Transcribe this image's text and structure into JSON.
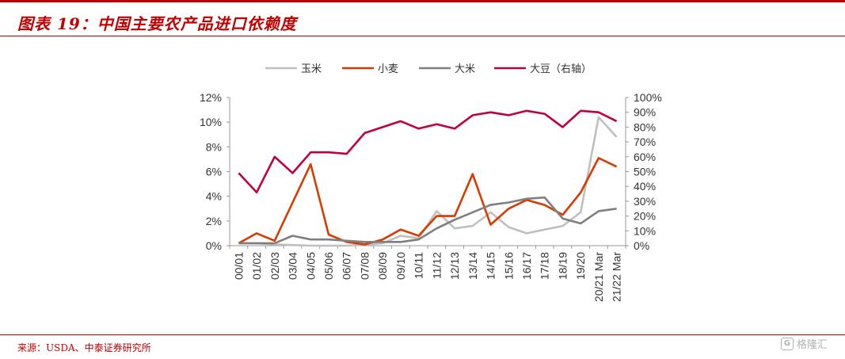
{
  "header": {
    "title": "图表 19：中国主要农产品进口依赖度"
  },
  "footer": {
    "source": "来源：USDA、中泰证券研究所"
  },
  "watermark": {
    "text": "格隆汇",
    "icon": "g-logo-icon"
  },
  "chart_data": {
    "type": "line",
    "categories": [
      "00/01",
      "01/02",
      "02/03",
      "03/04",
      "04/05",
      "05/06",
      "06/07",
      "07/08",
      "08/09",
      "09/10",
      "10/11",
      "11/12",
      "12/13",
      "13/14",
      "14/15",
      "15/16",
      "16/17",
      "17/18",
      "18/19",
      "19/20",
      "20/21 Mar",
      "21/22 Mar"
    ],
    "ylim_left": [
      0,
      12
    ],
    "yticks_left": [
      "0%",
      "2%",
      "4%",
      "6%",
      "8%",
      "10%",
      "12%"
    ],
    "ylim_right": [
      0,
      100
    ],
    "yticks_right": [
      "0%",
      "10%",
      "20%",
      "30%",
      "40%",
      "50%",
      "60%",
      "70%",
      "80%",
      "90%",
      "100%"
    ],
    "grid": false,
    "legend_position": "top",
    "series": [
      {
        "name": "玉米",
        "axis": "left",
        "color": "#bfbfbf",
        "values": [
          0.2,
          0.2,
          0.1,
          0.05,
          0.0,
          0.0,
          0.0,
          0.1,
          0.2,
          0.8,
          0.6,
          2.8,
          1.4,
          1.6,
          2.7,
          1.5,
          1.0,
          1.3,
          1.6,
          2.7,
          10.4,
          8.8
        ]
      },
      {
        "name": "小麦",
        "axis": "left",
        "color": "#d83b01",
        "values": [
          0.2,
          1.0,
          0.4,
          3.5,
          6.6,
          0.9,
          0.3,
          0.1,
          0.5,
          1.3,
          0.8,
          2.4,
          2.4,
          5.8,
          1.7,
          3.0,
          3.7,
          3.3,
          2.5,
          4.3,
          7.1,
          6.4
        ]
      },
      {
        "name": "大米",
        "axis": "left",
        "color": "#7f7f7f",
        "values": [
          0.2,
          0.2,
          0.2,
          0.8,
          0.5,
          0.5,
          0.4,
          0.3,
          0.3,
          0.3,
          0.5,
          1.4,
          2.1,
          2.7,
          3.3,
          3.5,
          3.8,
          3.9,
          2.2,
          1.8,
          2.8,
          3.0
        ]
      },
      {
        "name": "大豆（右轴）",
        "axis": "right",
        "color": "#c00040",
        "values": [
          49,
          36,
          60,
          49,
          63,
          63,
          62,
          76,
          80,
          84,
          79,
          82,
          79,
          88,
          90,
          88,
          91,
          89,
          80,
          91,
          90,
          84
        ]
      }
    ]
  }
}
